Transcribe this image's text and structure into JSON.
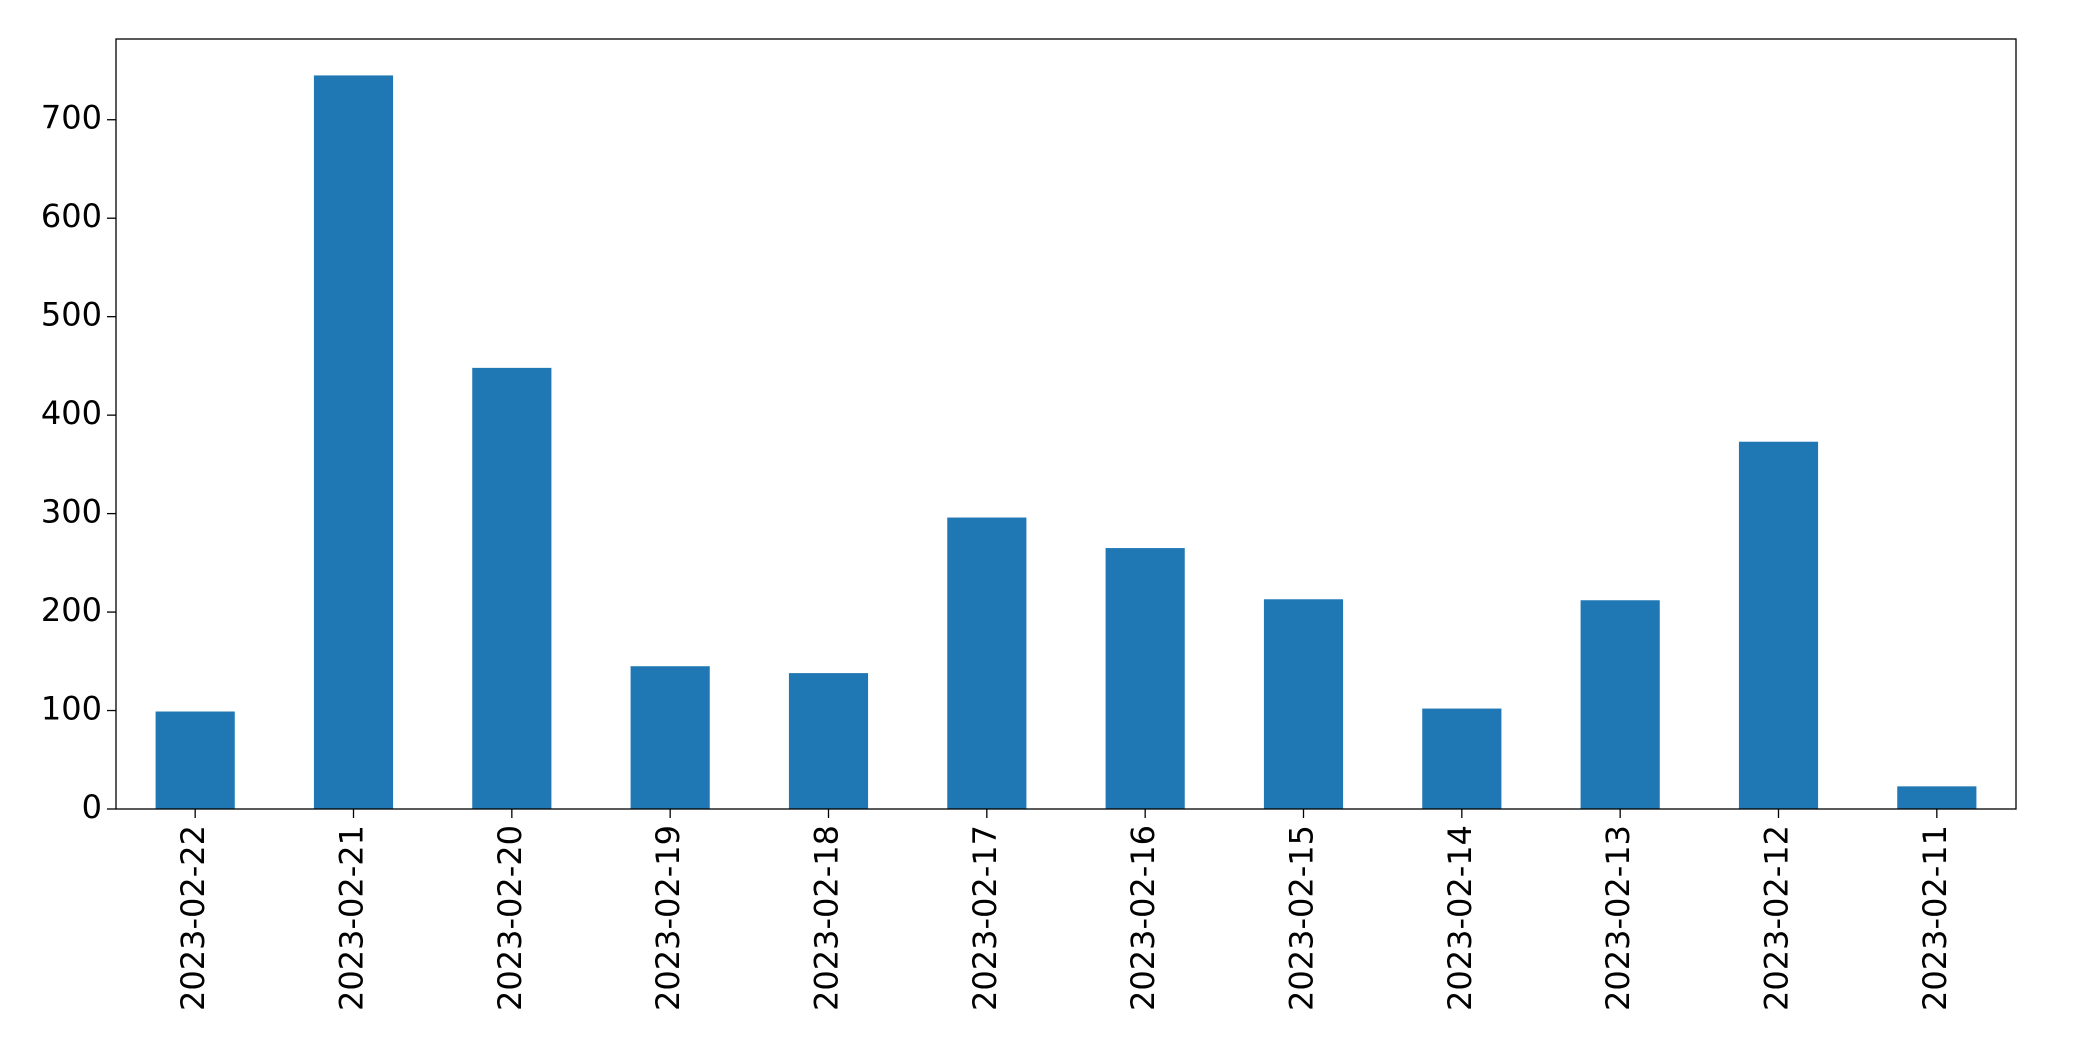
{
  "chart_data": {
    "type": "bar",
    "categories": [
      "2023-02-22",
      "2023-02-21",
      "2023-02-20",
      "2023-02-19",
      "2023-02-18",
      "2023-02-17",
      "2023-02-16",
      "2023-02-15",
      "2023-02-14",
      "2023-02-13",
      "2023-02-12",
      "2023-02-11"
    ],
    "values": [
      99,
      745,
      448,
      145,
      138,
      296,
      265,
      213,
      102,
      212,
      373,
      23
    ],
    "color": "#1f77b4",
    "ylim": [
      0,
      782
    ],
    "yticks": [
      0,
      100,
      200,
      300,
      400,
      500,
      600,
      700
    ],
    "grid": false
  }
}
